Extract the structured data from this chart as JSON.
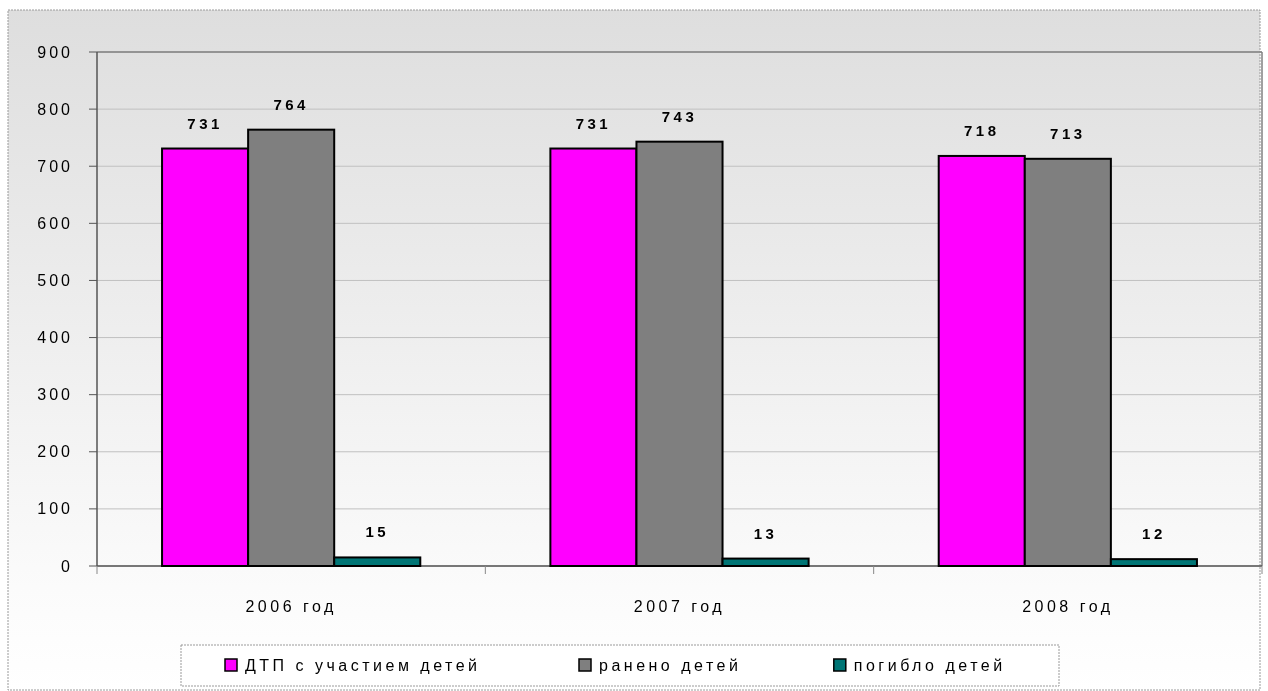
{
  "chart_data": {
    "type": "bar",
    "categories": [
      "2006 год",
      "2007 год",
      "2008 год"
    ],
    "series": [
      {
        "name": "ДТП с участием детей",
        "color": "#ff00ff",
        "values": [
          731,
          731,
          718
        ]
      },
      {
        "name": "ранено детей",
        "color": "#7f7f7f",
        "values": [
          764,
          743,
          713
        ]
      },
      {
        "name": "погибло детей",
        "color": "#007575",
        "values": [
          15,
          13,
          12
        ]
      }
    ],
    "ylim": [
      0,
      900
    ],
    "yticks": [
      0,
      100,
      200,
      300,
      400,
      500,
      600,
      700,
      800,
      900
    ],
    "grid": "y",
    "legend": "bottom",
    "data_labels": true
  }
}
